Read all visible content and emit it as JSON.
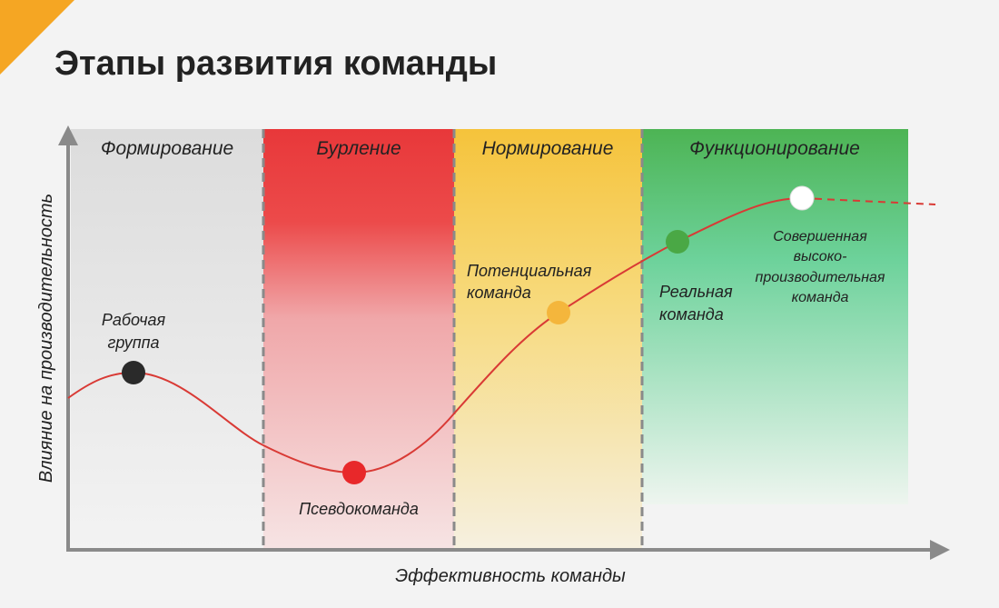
{
  "title": "Этапы развития команды",
  "axes": {
    "y_label": "Влияние на производительность",
    "x_label": "Эффективность команды"
  },
  "stages": [
    "Формирование",
    "Бурление",
    "Нормирование",
    "Функционирование"
  ],
  "points": [
    {
      "label": [
        "Рабочая",
        "группа"
      ]
    },
    {
      "label": [
        "Псевдокоманда"
      ]
    },
    {
      "label": [
        "Потенциальная",
        "команда"
      ]
    },
    {
      "label": [
        "Реальная",
        "команда"
      ]
    },
    {
      "label": [
        "Совершенная",
        "высоко-",
        "производительная",
        "команда"
      ]
    }
  ]
}
